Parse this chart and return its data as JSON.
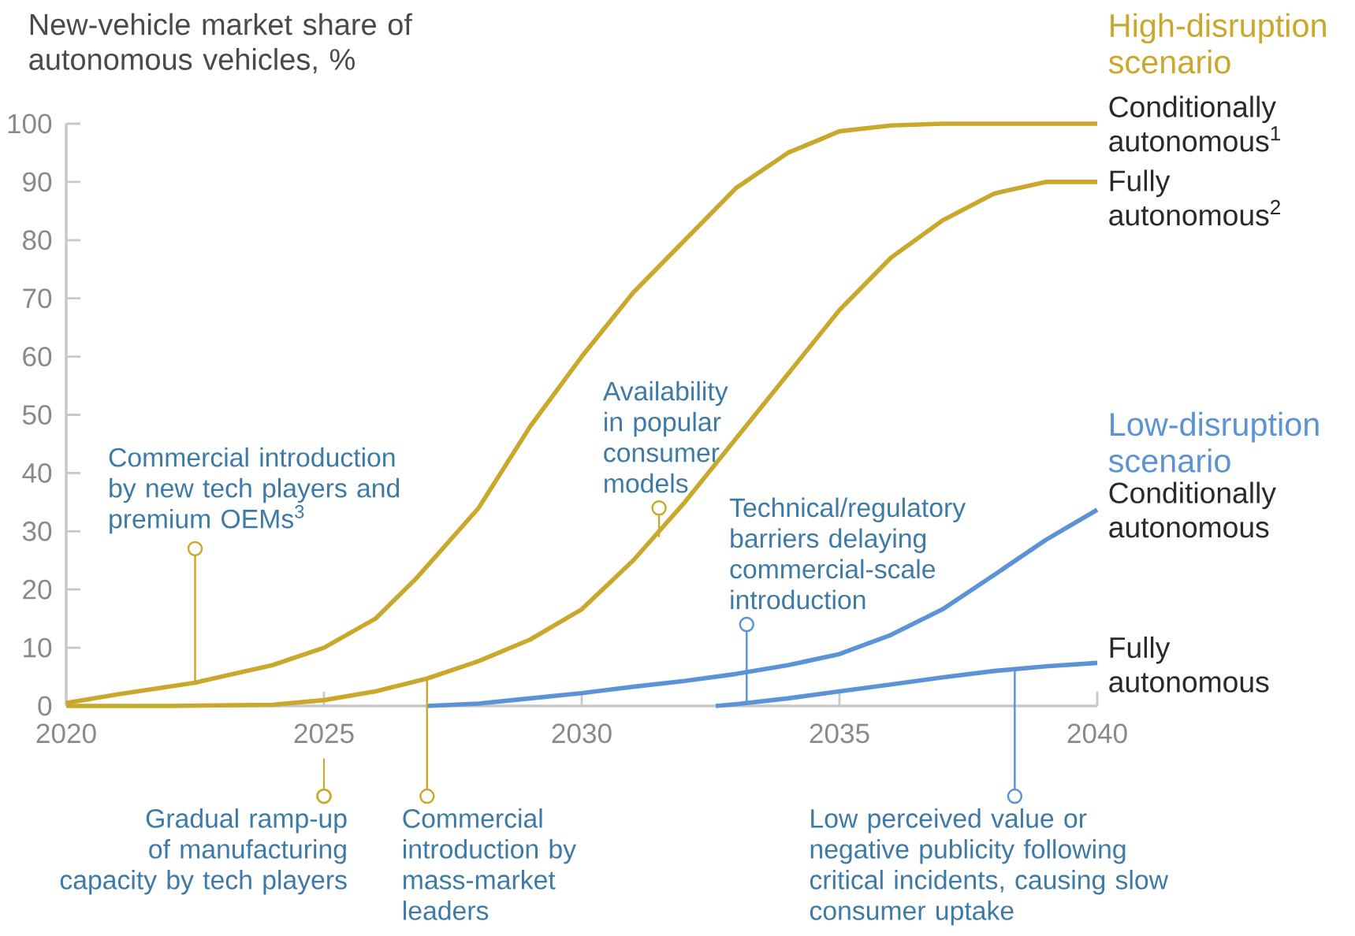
{
  "chart_data": {
    "type": "line",
    "title": "New-vehicle market share of autonomous vehicles, %",
    "xlim": [
      2020,
      2040
    ],
    "ylim": [
      0,
      100
    ],
    "xticks": [
      2020,
      2025,
      2030,
      2035,
      2040
    ],
    "yticks": [
      0,
      10,
      20,
      30,
      40,
      50,
      60,
      70,
      80,
      90,
      100
    ],
    "series": [
      {
        "name": "Conditionally autonomous$^{1}$",
        "color": "#c9a82c",
        "x": [
          2020,
          2021,
          2022.5,
          2024,
          2025,
          2026,
          2026.8,
          2028,
          2029,
          2030,
          2031,
          2032,
          2033,
          2034,
          2035,
          2036,
          2037,
          2038,
          2040
        ],
        "values": [
          0.5,
          2,
          4,
          7,
          10,
          15,
          22,
          34,
          48,
          60,
          71,
          80,
          89,
          95,
          98.7,
          99.7,
          100,
          100,
          100
        ]
      },
      {
        "name": "Fully autonomous$^{2}$",
        "color": "#c9a82c",
        "x": [
          2020,
          2022,
          2024,
          2025,
          2026,
          2027,
          2028,
          2029,
          2030,
          2031,
          2032,
          2033,
          2034,
          2035,
          2036,
          2037,
          2038,
          2039,
          2040
        ],
        "values": [
          0,
          0,
          0.2,
          1,
          2.5,
          4.7,
          7.7,
          11.4,
          16.6,
          25,
          35,
          46,
          57,
          68,
          77,
          83.4,
          88,
          90,
          90
        ]
      },
      {
        "name": "Conditionally autonomous",
        "color": "#5b93d6",
        "x": [
          2027,
          2028,
          2029,
          2030,
          2031,
          2032,
          2033,
          2034,
          2035,
          2036,
          2037,
          2038,
          2039,
          2040
        ],
        "values": [
          0,
          0.4,
          1.3,
          2.2,
          3.3,
          4.3,
          5.5,
          7,
          8.9,
          12.2,
          16.6,
          22.5,
          28.5,
          33.7
        ]
      },
      {
        "name": "Fully autonomous",
        "color": "#5b93d6",
        "x": [
          2032.6,
          2033,
          2034,
          2035,
          2036,
          2037,
          2038,
          2039,
          2040
        ],
        "values": [
          0,
          0.3,
          1.3,
          2.5,
          3.7,
          4.9,
          6,
          6.8,
          7.4
        ]
      }
    ],
    "annotations": [
      {
        "text": "Commercial introduction by new tech players and premium OEMs$^{3}$",
        "x": 2022.5,
        "y": 4
      },
      {
        "text": "Availability in popular consumer models",
        "x": 2031.5,
        "y": 29
      },
      {
        "text": "Technical/regulatory barriers delaying commercial-scale introduction",
        "x": 2033.2,
        "y": 0.3
      },
      "Gradual ramp-up of manufacturing capacity by tech players",
      {
        "text": "Commercial introduction by mass-market leaders",
        "x": 2027,
        "y": 4.7
      },
      {
        "text": "Low perceived value or negative publicity following critical incidents, causing slow consumer uptake",
        "x": 2038.4,
        "y": 6.3
      },
      "High-disruption scenario",
      "Low-disruption scenario"
    ]
  }
}
